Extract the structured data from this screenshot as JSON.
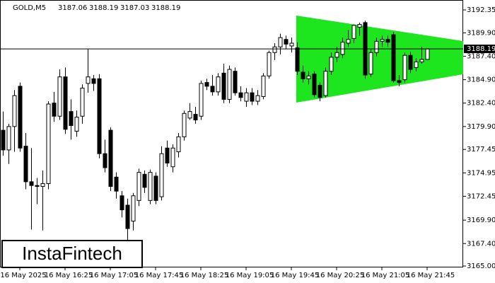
{
  "chart_data": {
    "type": "candlestick",
    "symbol": "GOLD,M5",
    "header_ohlc": [
      3187.06,
      3188.19,
      3187.03,
      3188.19
    ],
    "last_price": 3188.19,
    "brand": "InstaFintech",
    "ylim": [
      3164.85,
      3193.41
    ],
    "yticks": [
      3192.35,
      {
        "value": 3189.9,
        "label": "3189.90"
      },
      {
        "value": 3187.4,
        "label": "3187.40"
      },
      {
        "value": 3184.9,
        "label": "3184.90"
      },
      {
        "value": 3182.4,
        "label": "3182.40"
      },
      {
        "value": 3179.9,
        "label": "3179.90"
      },
      3177.45,
      3174.95,
      3172.45,
      {
        "value": 3169.9,
        "label": "3169.90"
      },
      {
        "value": 3167.4,
        "label": "3167.40"
      },
      {
        "value": 3165,
        "label": "3165.00"
      }
    ],
    "categories": [
      null,
      null,
      null,
      "16 May 2025",
      null,
      null,
      null,
      null,
      null,
      null,
      null,
      "16 May 16:25",
      null,
      null,
      null,
      null,
      null,
      null,
      null,
      "16 May 17:05",
      null,
      null,
      null,
      null,
      null,
      null,
      null,
      "16 May 17:45",
      null,
      null,
      null,
      null,
      null,
      null,
      null,
      "16 May 18:25",
      null,
      null,
      null,
      null,
      null,
      null,
      null,
      "16 May 19:05",
      null,
      null,
      null,
      null,
      null,
      null,
      null,
      "16 May 19:45",
      null,
      null,
      null,
      null,
      null,
      null,
      null,
      "16 May 20:25",
      null,
      null,
      null,
      null,
      null,
      null,
      null,
      "16 May 21:05",
      null,
      null,
      null,
      null,
      null,
      null,
      null,
      "16 May 21:45"
    ],
    "ohlc": [
      [
        3179.5,
        3181.5,
        3176.8,
        3177.4
      ],
      [
        3177.4,
        3180.2,
        3175.9,
        3179.9
      ],
      [
        3179.9,
        3183.8,
        3177.2,
        3183.2
      ],
      [
        3184.2,
        3184.6,
        3177.2,
        3177.6
      ],
      [
        3177.8,
        3179.2,
        3173.2,
        3174.0
      ],
      [
        3174.0,
        3177.6,
        3168.9,
        3173.6
      ],
      [
        3173.6,
        3174.4,
        3171.6,
        3173.5
      ],
      [
        3173.5,
        3175.2,
        3168.8,
        3173.8
      ],
      [
        3173.8,
        3182.6,
        3173.2,
        3182.3
      ],
      [
        3182.4,
        3183.6,
        3180.4,
        3181.0
      ],
      [
        3181.0,
        3186.0,
        3180.6,
        3185.2
      ],
      [
        3185.2,
        3186.2,
        3179.1,
        3179.6
      ],
      [
        3181.5,
        3182.8,
        3178.5,
        3180.0
      ],
      [
        3179.4,
        3181.6,
        3178.8,
        3180.9
      ],
      [
        3181.0,
        3184.4,
        3180.2,
        3184.0
      ],
      [
        3184.5,
        3188.2,
        3183.5,
        3185.2
      ],
      [
        3185.0,
        3185.4,
        3183.7,
        3184.5
      ],
      [
        3185.0,
        3185.5,
        3176.5,
        3177.0
      ],
      [
        3177.0,
        3178.5,
        3175.0,
        3175.5
      ],
      [
        3179.5,
        3179.8,
        3173.0,
        3173.5
      ],
      [
        3174.5,
        3175.0,
        3172.2,
        3173.0
      ],
      [
        3172.5,
        3173.0,
        3170.2,
        3171.0
      ],
      [
        3171.5,
        3172.2,
        3167.6,
        3169.0
      ],
      [
        3169.8,
        3172.8,
        3168.8,
        3172.5
      ],
      [
        3172.0,
        3175.4,
        3171.4,
        3175.0
      ],
      [
        3174.8,
        3175.2,
        3172.8,
        3173.4
      ],
      [
        3172.0,
        3175.3,
        3171.6,
        3175.0
      ],
      [
        3174.6,
        3175.0,
        3171.6,
        3172.0
      ],
      [
        3172.4,
        3177.8,
        3172.0,
        3177.0
      ],
      [
        3177.6,
        3178.4,
        3175.6,
        3176.0
      ],
      [
        3175.6,
        3178.0,
        3175.0,
        3177.6
      ],
      [
        3177.2,
        3179.2,
        3176.6,
        3178.8
      ],
      [
        3178.8,
        3181.6,
        3178.4,
        3181.3
      ],
      [
        3180.8,
        3182.4,
        3180.6,
        3181.5
      ],
      [
        3181.2,
        3182.0,
        3180.2,
        3180.6
      ],
      [
        3181.0,
        3184.8,
        3180.6,
        3184.5
      ],
      [
        3184.6,
        3185.0,
        3183.8,
        3184.2
      ],
      [
        3184.2,
        3185.4,
        3183.2,
        3183.6
      ],
      [
        3183.6,
        3185.6,
        3183.2,
        3185.2
      ],
      [
        3185.6,
        3186.6,
        3182.4,
        3182.8
      ],
      [
        3182.8,
        3186.4,
        3182.4,
        3186.0
      ],
      [
        3185.8,
        3186.2,
        3183.2,
        3183.5
      ],
      [
        3183.5,
        3184.2,
        3182.6,
        3183.0
      ],
      [
        3182.6,
        3184.0,
        3182.0,
        3183.5
      ],
      [
        3183.5,
        3184.0,
        3182.2,
        3182.6
      ],
      [
        3182.6,
        3183.8,
        3182.2,
        3183.2
      ],
      [
        3183.1,
        3185.6,
        3182.8,
        3185.3
      ],
      [
        3185.3,
        3188.0,
        3185.0,
        3187.8
      ],
      [
        3187.8,
        3188.8,
        3187.0,
        3188.4
      ],
      [
        3188.4,
        3189.8,
        3187.6,
        3189.4
      ],
      [
        3189.2,
        3189.6,
        3188.2,
        3188.7
      ],
      [
        3188.5,
        3189.4,
        3187.8,
        3188.8
      ],
      [
        3188.3,
        3188.9,
        3185.4,
        3185.8
      ],
      [
        3185.7,
        3186.4,
        3184.6,
        3185.0
      ],
      [
        3185.0,
        3185.8,
        3184.4,
        3185.3
      ],
      [
        3185.5,
        3185.8,
        3183.0,
        3183.3
      ],
      [
        3184.3,
        3184.6,
        3182.6,
        3183.0
      ],
      [
        3183.2,
        3186.2,
        3183.0,
        3185.8
      ],
      [
        3185.8,
        3187.8,
        3185.4,
        3187.3
      ],
      [
        3187.3,
        3188.4,
        3186.8,
        3187.8
      ],
      [
        3187.6,
        3189.4,
        3187.2,
        3188.9
      ],
      [
        3188.8,
        3190.2,
        3188.4,
        3189.2
      ],
      [
        3189.3,
        3190.8,
        3188.8,
        3190.7
      ],
      [
        3190.5,
        3191.0,
        3189.6,
        3190.8
      ],
      [
        3191.0,
        3191.2,
        3185.0,
        3185.4
      ],
      [
        3185.5,
        3188.2,
        3185.2,
        3187.8
      ],
      [
        3187.8,
        3189.4,
        3187.4,
        3189.0
      ],
      [
        3189.0,
        3189.6,
        3188.4,
        3189.2
      ],
      [
        3189.2,
        3189.6,
        3188.4,
        3188.9
      ],
      [
        3189.7,
        3190.0,
        3184.6,
        3184.8
      ],
      [
        3184.8,
        3185.4,
        3184.2,
        3184.6
      ],
      [
        3184.9,
        3187.8,
        3184.6,
        3187.5
      ],
      [
        3187.5,
        3187.9,
        3185.6,
        3186.0
      ],
      [
        3186.2,
        3187.2,
        3185.8,
        3186.8
      ],
      [
        3186.8,
        3188.4,
        3186.6,
        3187.06
      ],
      [
        3187.06,
        3188.19,
        3187.03,
        3188.19
      ]
    ],
    "up_color": "#ffffff",
    "down_color": "#000000",
    "line_color": "#000000"
  }
}
